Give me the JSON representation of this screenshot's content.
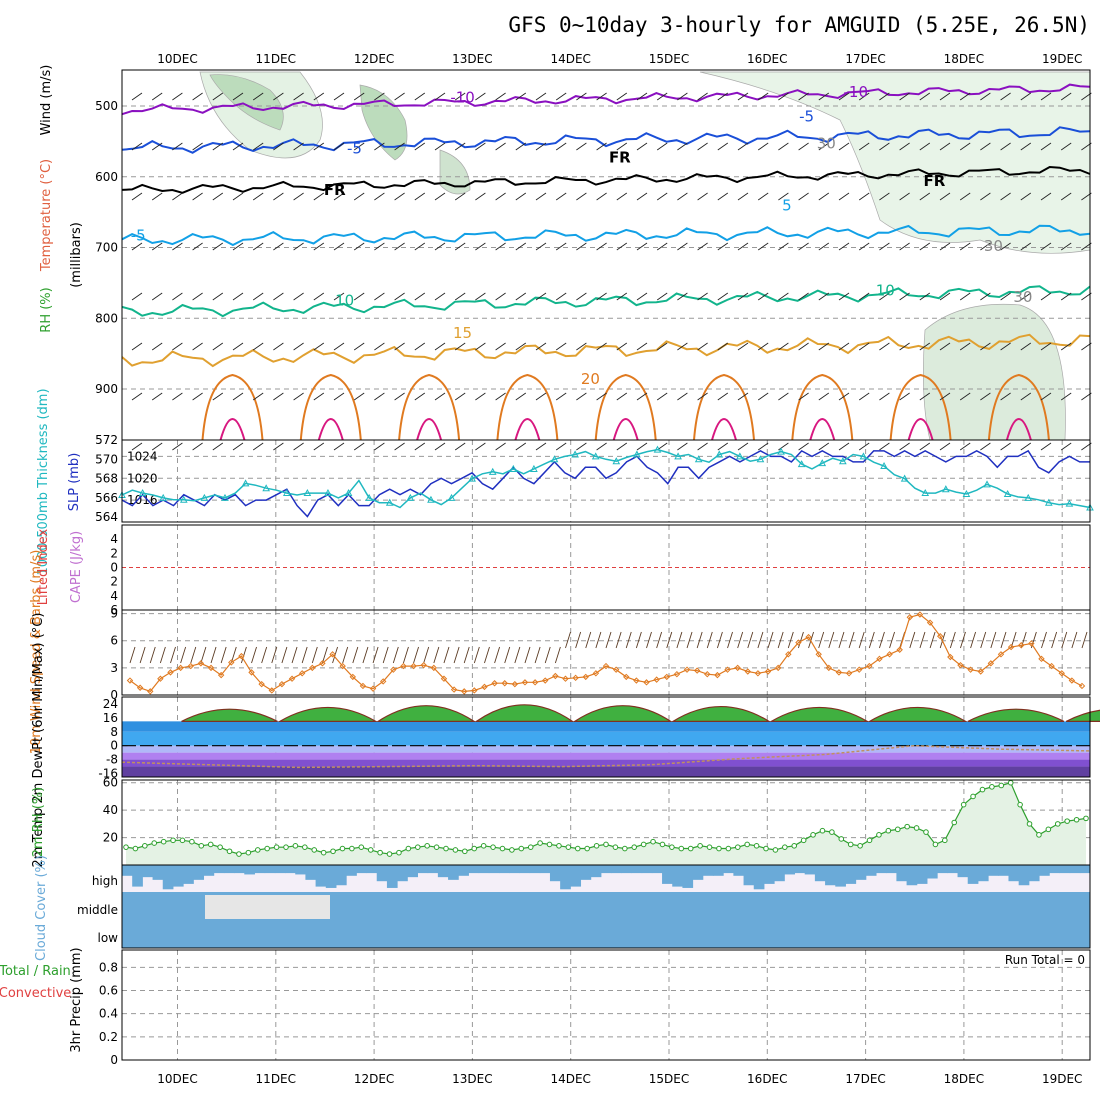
{
  "title": "GFS 0~10day 3-hourly for AMGUID (5.25E, 26.5N)",
  "colors": {
    "purple": "#8a10c0",
    "blue": "#1a4fd8",
    "sky": "#12a0e6",
    "teal": "#12b48c",
    "orange": "#e0a030",
    "dorange": "#e07a20",
    "magenta": "#d81880",
    "cyan": "#20b8c0",
    "navy": "#2030c0",
    "rhgreen": "#2ea02e",
    "cloud": "#6aaad8",
    "grid": "#999999",
    "red": "#e04040",
    "violet": "#c070d0",
    "windorange": "#e07a20"
  },
  "chart_data": [
    {
      "name": "upper-air",
      "type": "contour",
      "x": [
        "10DEC",
        "11DEC",
        "12DEC",
        "13DEC",
        "14DEC",
        "15DEC",
        "16DEC",
        "17DEC",
        "18DEC",
        "19DEC"
      ],
      "ylabel_parts": [
        "RH (%)",
        "Temperature (°C)",
        "Wind (m/s)",
        "(millibars)"
      ],
      "yticks": [
        500,
        600,
        700,
        800,
        900
      ],
      "ylim": [
        445,
        965
      ],
      "contour_labels": [
        {
          "text": "-10",
          "day": 2.9,
          "p": 495,
          "c": "purple"
        },
        {
          "text": "-10",
          "day": 6.9,
          "p": 487,
          "c": "purple"
        },
        {
          "text": "-5",
          "day": 1.8,
          "p": 567,
          "c": "blue"
        },
        {
          "text": "-5",
          "day": 6.4,
          "p": 522,
          "c": "blue"
        },
        {
          "text": "-5",
          "day": -0.4,
          "p": 690,
          "c": "sky"
        },
        {
          "text": "5",
          "day": 6.2,
          "p": 648,
          "c": "sky"
        },
        {
          "text": "FR",
          "day": 1.6,
          "p": 626,
          "c": "black"
        },
        {
          "text": "FR",
          "day": 4.5,
          "p": 580,
          "c": "black"
        },
        {
          "text": "FR",
          "day": 7.7,
          "p": 613,
          "c": "black"
        },
        {
          "text": "10",
          "day": 1.7,
          "p": 782,
          "c": "teal"
        },
        {
          "text": "10",
          "day": 7.2,
          "p": 768,
          "c": "teal"
        },
        {
          "text": "15",
          "day": 2.9,
          "p": 828,
          "c": "orange"
        },
        {
          "text": "20",
          "day": 4.2,
          "p": 893,
          "c": "dorange"
        },
        {
          "text": "30",
          "day": 6.6,
          "p": 560,
          "c": "gray"
        },
        {
          "text": "30",
          "day": 8.3,
          "p": 705,
          "c": "gray"
        },
        {
          "text": "30",
          "day": 8.6,
          "p": 777,
          "c": "gray"
        }
      ]
    },
    {
      "name": "slp-thickness",
      "type": "line",
      "ylabel_left": "1000-500mb Thickness (dm)",
      "ylabel_right": "SLP (mb)",
      "yticks_left": [
        564,
        566,
        568,
        570,
        572
      ],
      "yticks_right": [
        1016,
        1020,
        1024
      ],
      "ylim_left": [
        563.5,
        572
      ],
      "ylim_right": [
        1012,
        1027
      ],
      "series": [
        {
          "c": "navy",
          "values": [
            1016,
            1015,
            1017,
            1015,
            1016,
            1015,
            1017,
            1016,
            1015,
            1017,
            1016,
            1017,
            1015,
            1016,
            1016,
            1017,
            1018,
            1015,
            1013,
            1016,
            1017,
            1015,
            1017,
            1015,
            1015,
            1017,
            1018,
            1017,
            1018,
            1017,
            1019,
            1020,
            1019,
            1020,
            1021,
            1019,
            1018,
            1020,
            1022,
            1020,
            1019,
            1021,
            1023,
            1021,
            1020,
            1022,
            1022,
            1020,
            1021,
            1023,
            1024,
            1022,
            1021,
            1019,
            1022,
            1022,
            1020,
            1022,
            1023,
            1024,
            1023,
            1024,
            1025,
            1024,
            1024,
            1023,
            1025,
            1024,
            1025,
            1024,
            1024,
            1023,
            1023,
            1025,
            1025,
            1024,
            1025,
            1024,
            1025,
            1024,
            1023,
            1024,
            1024,
            1025,
            1024,
            1022,
            1024,
            1024,
            1025,
            1022,
            1021,
            1023,
            1024,
            1023,
            1023
          ]
        },
        {
          "c": "cyan",
          "values": [
            566.3,
            566.8,
            566.5,
            566.3,
            566.0,
            565.8,
            565.8,
            565.7,
            566.0,
            566.3,
            566.0,
            566.5,
            567.5,
            567.3,
            567.0,
            566.8,
            566.5,
            566.3,
            566.5,
            566.5,
            566.5,
            566.0,
            566.5,
            567.8,
            566.0,
            565.5,
            565.5,
            565.0,
            566.0,
            566.5,
            565.8,
            565.3,
            566.0,
            567.0,
            568.0,
            568.5,
            568.7,
            568.5,
            569.0,
            568.5,
            569.0,
            569.5,
            570.0,
            570.3,
            570.5,
            570.8,
            570.3,
            570.0,
            569.8,
            570.2,
            570.5,
            570.8,
            571.0,
            570.7,
            570.3,
            570.5,
            570.0,
            569.7,
            570.5,
            570.8,
            570.3,
            569.8,
            570.0,
            570.5,
            570.8,
            570.5,
            569.5,
            569.0,
            569.6,
            570.1,
            569.8,
            570.5,
            570.3,
            569.7,
            569.3,
            568.4,
            568.0,
            567.0,
            566.5,
            566.5,
            566.9,
            566.6,
            566.4,
            566.8,
            567.4,
            567.0,
            566.4,
            566.1,
            566.0,
            565.8,
            565.5,
            565.3,
            565.4,
            565.2,
            565.0
          ]
        }
      ]
    },
    {
      "name": "stability",
      "type": "line",
      "ylabel_left": "Lifted Index",
      "ylabel_right": "CAPE (J/kg)",
      "yticks": [
        -4,
        -2,
        0,
        2,
        4,
        6
      ],
      "ylim": [
        -6,
        6
      ]
    },
    {
      "name": "wind10m",
      "type": "line",
      "ylabel": "10m Wind Speed & Barbs (m/s)",
      "yticks": [
        0,
        3,
        6,
        9
      ],
      "ylim": [
        0,
        9.4
      ],
      "values": [
        1.6,
        0.8,
        0.4,
        1.8,
        2.5,
        3.0,
        3.2,
        3.5,
        3.0,
        2.2,
        3.6,
        4.3,
        2.5,
        1.2,
        0.5,
        1.2,
        1.8,
        2.4,
        3.0,
        3.5,
        4.5,
        3.2,
        2.0,
        1.0,
        0.7,
        1.5,
        2.8,
        3.2,
        3.2,
        3.3,
        3.0,
        1.8,
        0.6,
        0.4,
        0.5,
        0.9,
        1.3,
        1.3,
        1.2,
        1.4,
        1.4,
        1.6,
        2.1,
        1.8,
        1.9,
        2.0,
        2.4,
        3.2,
        2.8,
        2.0,
        1.6,
        1.4,
        1.7,
        2.0,
        2.3,
        2.8,
        2.7,
        2.3,
        2.2,
        2.8,
        3.0,
        2.6,
        2.4,
        2.6,
        3.0,
        4.5,
        5.8,
        6.4,
        4.5,
        3.0,
        2.5,
        2.4,
        2.8,
        3.2,
        4.0,
        4.5,
        5.0,
        8.6,
        8.9,
        8.0,
        6.5,
        4.2,
        3.3,
        2.8,
        2.6,
        3.5,
        4.5,
        5.3,
        5.5,
        5.7,
        4.0,
        3.2,
        2.4,
        1.6,
        1.0
      ]
    },
    {
      "name": "temp2m",
      "type": "area",
      "ylabel": "2m Temp 2m DewPt (6hr Min/Max) (°C)",
      "yticks": [
        -16,
        -8,
        0,
        8,
        16,
        24
      ],
      "ylim": [
        -18,
        28
      ],
      "min": 14,
      "max": 26,
      "dew": [
        -9.5,
        -11.0,
        -12.5,
        -12.0,
        -11.5,
        -12.0,
        -11.0,
        -7.5,
        -5.0,
        0.0,
        -2.0,
        -3.0
      ]
    },
    {
      "name": "rh2m",
      "type": "line",
      "ylabel": "2m RH (%)",
      "yticks": [
        20,
        40,
        60
      ],
      "ylim": [
        0,
        62
      ],
      "values": [
        13,
        12,
        14,
        16,
        17,
        18,
        18,
        17,
        14,
        15,
        13,
        10,
        8,
        9,
        11,
        12,
        13,
        13,
        14,
        13,
        11,
        9,
        10,
        12,
        12,
        13,
        11,
        9,
        8,
        9,
        12,
        13,
        14,
        13,
        12,
        11,
        10,
        12,
        14,
        13,
        12,
        11,
        12,
        13,
        16,
        15,
        14,
        13,
        12,
        12,
        14,
        15,
        13,
        12,
        13,
        15,
        17,
        15,
        13,
        12,
        12,
        14,
        13,
        12,
        12,
        13,
        15,
        14,
        12,
        11,
        13,
        14,
        18,
        22,
        25,
        24,
        19,
        15,
        14,
        18,
        22,
        25,
        26,
        28,
        27,
        24,
        15,
        18,
        31,
        44,
        50,
        55,
        57,
        58,
        60,
        44,
        30,
        22,
        26,
        30,
        32,
        33,
        34
      ]
    },
    {
      "name": "cloud",
      "type": "bar",
      "ylabel": "Cloud Cover (%)",
      "levels": [
        "high",
        "middle",
        "low"
      ],
      "high_values": [
        40,
        80,
        45,
        55,
        90,
        80,
        70,
        55,
        40,
        30,
        30,
        30,
        35,
        30,
        30,
        30,
        30,
        35,
        55,
        80,
        85,
        75,
        40,
        30,
        30,
        60,
        85,
        60,
        45,
        30,
        30,
        45,
        55,
        40,
        30,
        30,
        30,
        30,
        30,
        30,
        30,
        30,
        60,
        90,
        80,
        55,
        45,
        30,
        30,
        30,
        30,
        30,
        30,
        70,
        80,
        85,
        55,
        40,
        40,
        30,
        40,
        75,
        90,
        70,
        60,
        35,
        30,
        35,
        60,
        75,
        80,
        70,
        55,
        40,
        30,
        30,
        60,
        75,
        70,
        50,
        30,
        30,
        45,
        70,
        60,
        40,
        40,
        60,
        75,
        60,
        40,
        30,
        30,
        30,
        30
      ],
      "mid_clear": [
        [
          0.3,
          1.6,
          0.0
        ],
        [
          0.3,
          2.15,
          0.8
        ]
      ]
    },
    {
      "name": "precip",
      "type": "bar",
      "ylabel_left": "Total / Rain",
      "ylabel_left2": "Convective",
      "ylabel": "3hr Precip (mm)",
      "yticks": [
        0,
        0.2,
        0.4,
        0.6,
        0.8
      ],
      "ylim": [
        0,
        0.95
      ],
      "run_total": "Run Total = 0"
    }
  ]
}
